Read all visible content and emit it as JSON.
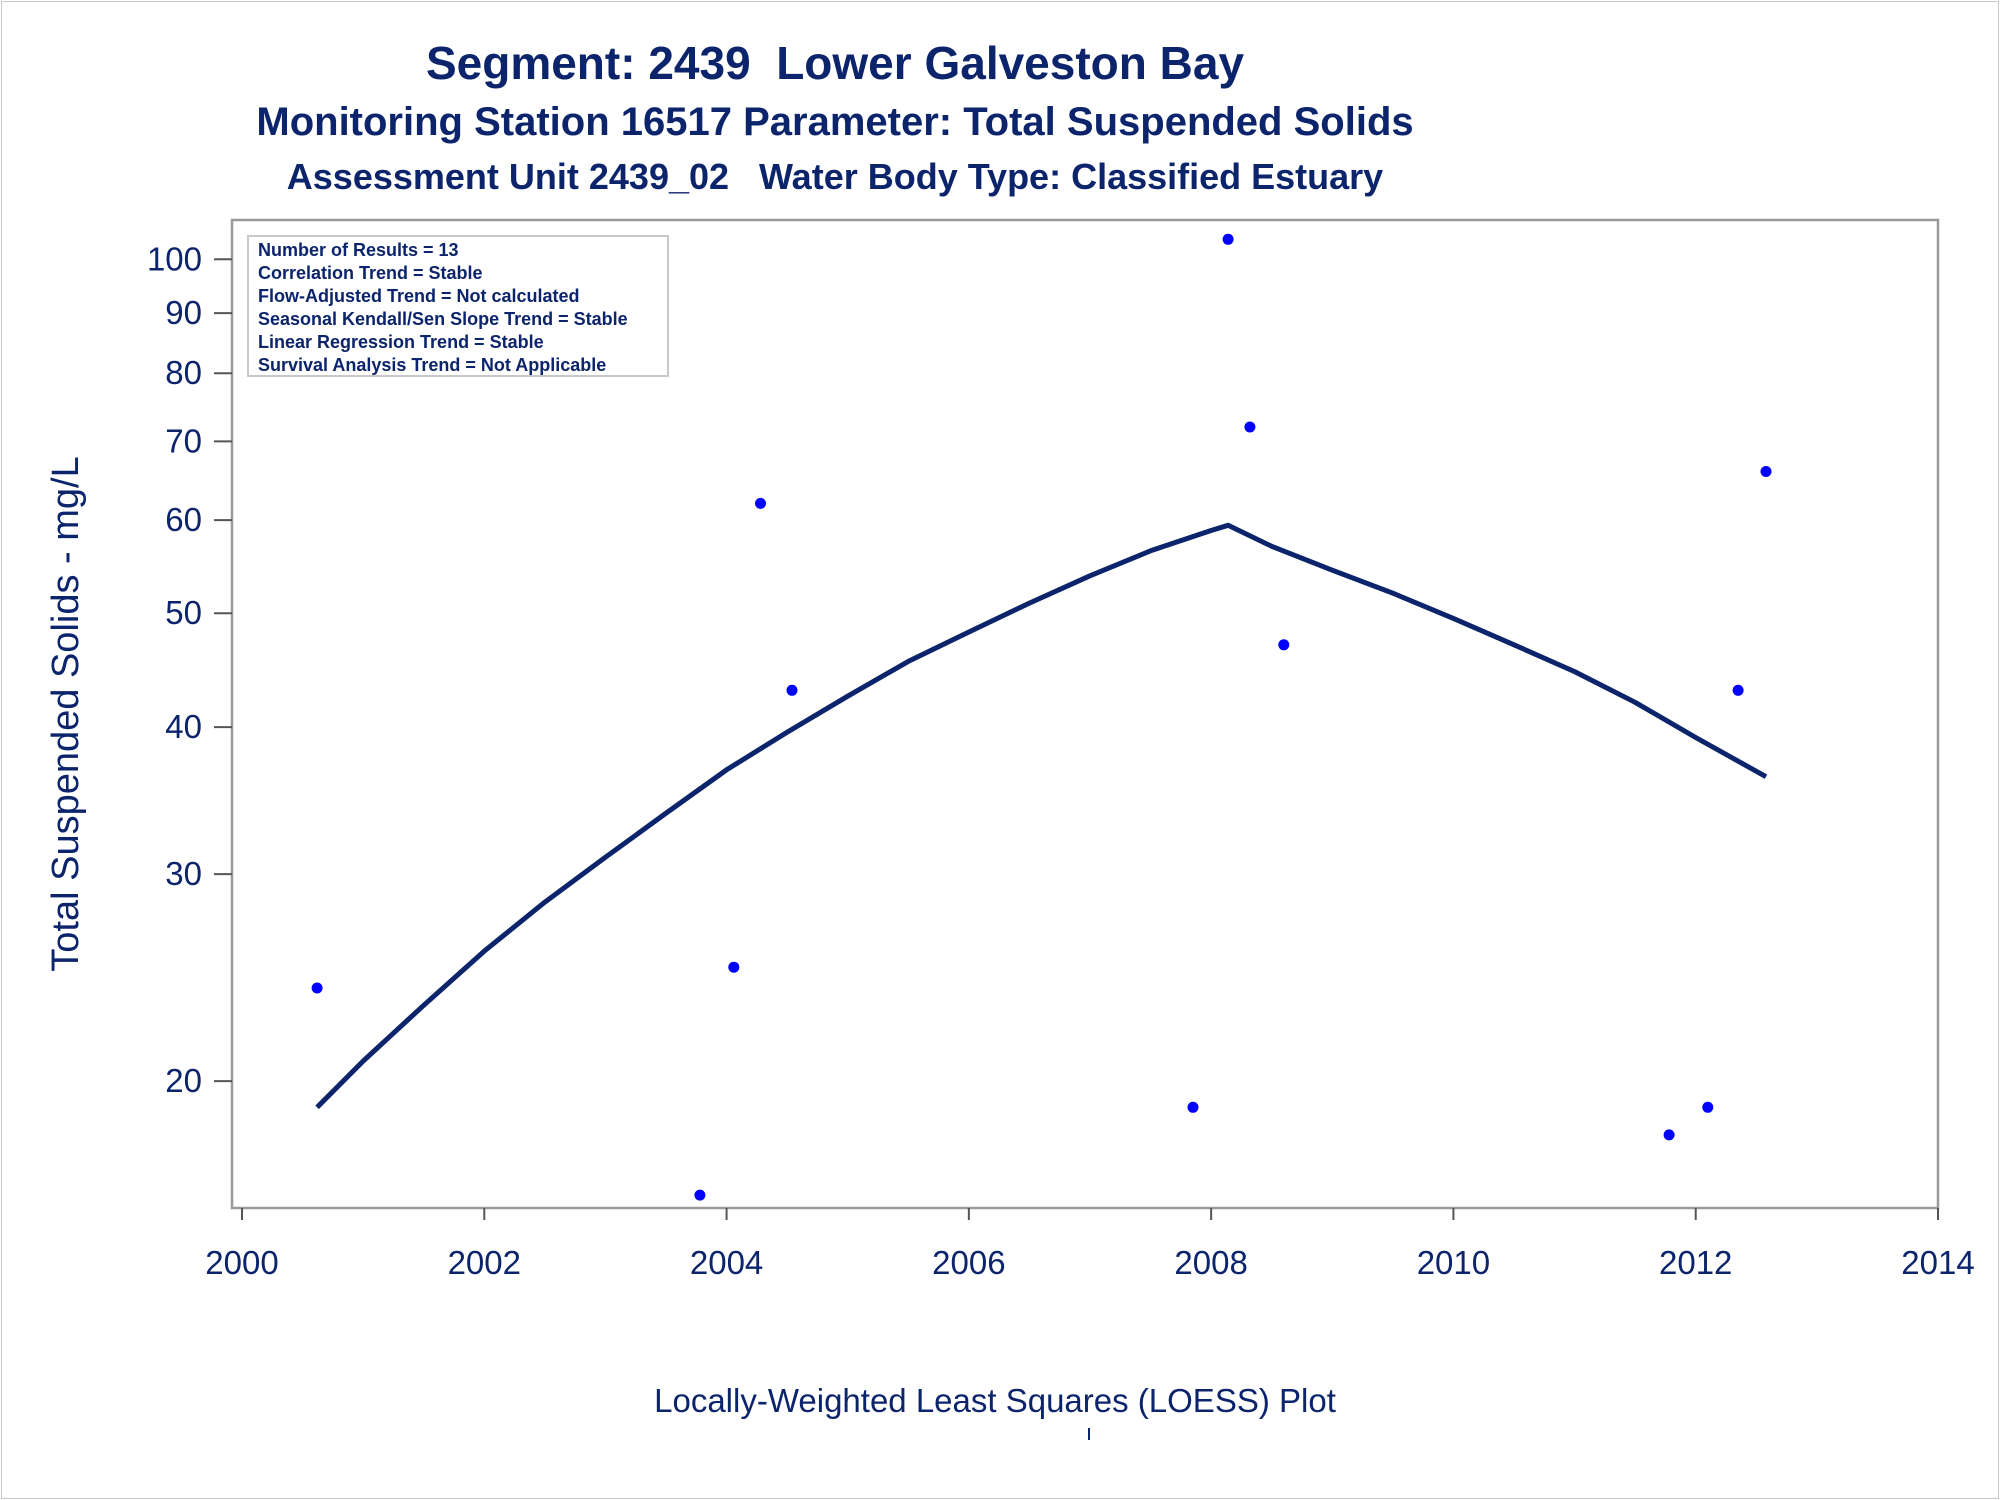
{
  "titles": {
    "line1": "Segment: 2439  Lower Galveston Bay",
    "line2": "Monitoring Station 16517 Parameter: Total Suspended Solids",
    "line3": "Assessment Unit 2439_02   Water Body Type: Classified Estuary"
  },
  "stats_box": [
    "Number of Results = 13",
    "Correlation Trend = Stable",
    "Flow-Adjusted Trend = Not calculated",
    "Seasonal Kendall/Sen Slope Trend = Stable",
    "Linear Regression Trend = Stable",
    "Survival Analysis Trend = Not Applicable"
  ],
  "footnote": "Locally-Weighted Least Squares (LOESS) Plot",
  "colors": {
    "text": "#0b246b",
    "points": "#0000ff",
    "loess_line": "#0b246b",
    "frame": "#999999"
  },
  "chart_data": {
    "type": "scatter",
    "ylabel": "Total Suspended Solids - mg/L",
    "xlabel": "",
    "y_scale": "log",
    "xlim": [
      2000,
      2014
    ],
    "ylim": [
      15.6,
      108
    ],
    "x_ticks": [
      2000,
      2002,
      2004,
      2006,
      2008,
      2010,
      2012,
      2014
    ],
    "y_ticks": [
      20,
      30,
      40,
      50,
      60,
      70,
      80,
      90,
      100
    ],
    "grid": false,
    "series": [
      {
        "kind": "points",
        "points": [
          {
            "x": 2000.62,
            "y": 24
          },
          {
            "x": 2003.78,
            "y": 16
          },
          {
            "x": 2004.06,
            "y": 25
          },
          {
            "x": 2004.28,
            "y": 62
          },
          {
            "x": 2004.54,
            "y": 43
          },
          {
            "x": 2007.85,
            "y": 19
          },
          {
            "x": 2008.14,
            "y": 104
          },
          {
            "x": 2008.32,
            "y": 72
          },
          {
            "x": 2008.6,
            "y": 47
          },
          {
            "x": 2011.78,
            "y": 18
          },
          {
            "x": 2012.1,
            "y": 19
          },
          {
            "x": 2012.35,
            "y": 43
          },
          {
            "x": 2012.58,
            "y": 66
          }
        ]
      },
      {
        "kind": "loess",
        "points": [
          {
            "x": 2000.62,
            "y": 19.0
          },
          {
            "x": 2001.0,
            "y": 20.8
          },
          {
            "x": 2001.5,
            "y": 23.2
          },
          {
            "x": 2002.0,
            "y": 25.8
          },
          {
            "x": 2002.5,
            "y": 28.4
          },
          {
            "x": 2003.0,
            "y": 31.0
          },
          {
            "x": 2003.5,
            "y": 33.8
          },
          {
            "x": 2004.0,
            "y": 36.8
          },
          {
            "x": 2004.5,
            "y": 39.6
          },
          {
            "x": 2005.0,
            "y": 42.5
          },
          {
            "x": 2005.5,
            "y": 45.5
          },
          {
            "x": 2006.0,
            "y": 48.2
          },
          {
            "x": 2006.5,
            "y": 51.0
          },
          {
            "x": 2007.0,
            "y": 53.8
          },
          {
            "x": 2007.5,
            "y": 56.5
          },
          {
            "x": 2008.0,
            "y": 58.8
          },
          {
            "x": 2008.14,
            "y": 59.4
          },
          {
            "x": 2008.5,
            "y": 57.0
          },
          {
            "x": 2009.0,
            "y": 54.4
          },
          {
            "x": 2009.5,
            "y": 52.0
          },
          {
            "x": 2010.0,
            "y": 49.5
          },
          {
            "x": 2010.5,
            "y": 47.0
          },
          {
            "x": 2011.0,
            "y": 44.6
          },
          {
            "x": 2011.5,
            "y": 42.0
          },
          {
            "x": 2012.0,
            "y": 39.2
          },
          {
            "x": 2012.58,
            "y": 36.3
          }
        ]
      }
    ]
  }
}
